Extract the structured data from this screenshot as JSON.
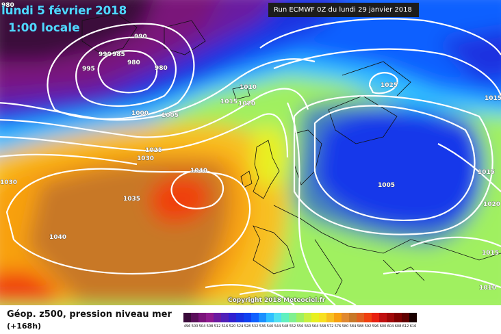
{
  "title": {
    "date": "lundi 5 février 2018",
    "time": "1:00 locale"
  },
  "run_label": "Run ECMWF 0Z du lundi 29 janvier 2018",
  "copyright": "Copyright 2018 Meteociel.fr",
  "caption": {
    "line1": "Géop. z500, pression niveau mer",
    "line2": "(+168h)"
  },
  "isobar_labels": [
    "980",
    "990",
    "985",
    "990",
    "995",
    "980",
    "980",
    "1010",
    "1015",
    "1020",
    "1005",
    "1000",
    "1025",
    "1030",
    "1040",
    "1035",
    "1040",
    "1030",
    "1025",
    "1015",
    "1005",
    "1015",
    "1020",
    "1015",
    "1010"
  ],
  "legend": {
    "values": [
      "496",
      "500",
      "504",
      "508",
      "512",
      "516",
      "520",
      "524",
      "528",
      "532",
      "536",
      "540",
      "544",
      "548",
      "552",
      "556",
      "560",
      "564",
      "568",
      "572",
      "576",
      "580",
      "584",
      "588",
      "592",
      "596",
      "600",
      "604",
      "608",
      "612",
      "616"
    ],
    "colors": [
      "#3a0a3a",
      "#5a0f5a",
      "#7a137a",
      "#8e1a8e",
      "#6a1aa0",
      "#5020b8",
      "#3020d0",
      "#1a30e0",
      "#1040f0",
      "#1060ff",
      "#1a90ff",
      "#30c0ff",
      "#50e0f0",
      "#60f0c0",
      "#80f090",
      "#a0f060",
      "#c8f040",
      "#e8f020",
      "#f8e020",
      "#f8c020",
      "#f8a010",
      "#e08830",
      "#c87828",
      "#e06020",
      "#f04010",
      "#e82010",
      "#c01010",
      "#a00808",
      "#800000",
      "#600000",
      "#1a0000"
    ]
  }
}
